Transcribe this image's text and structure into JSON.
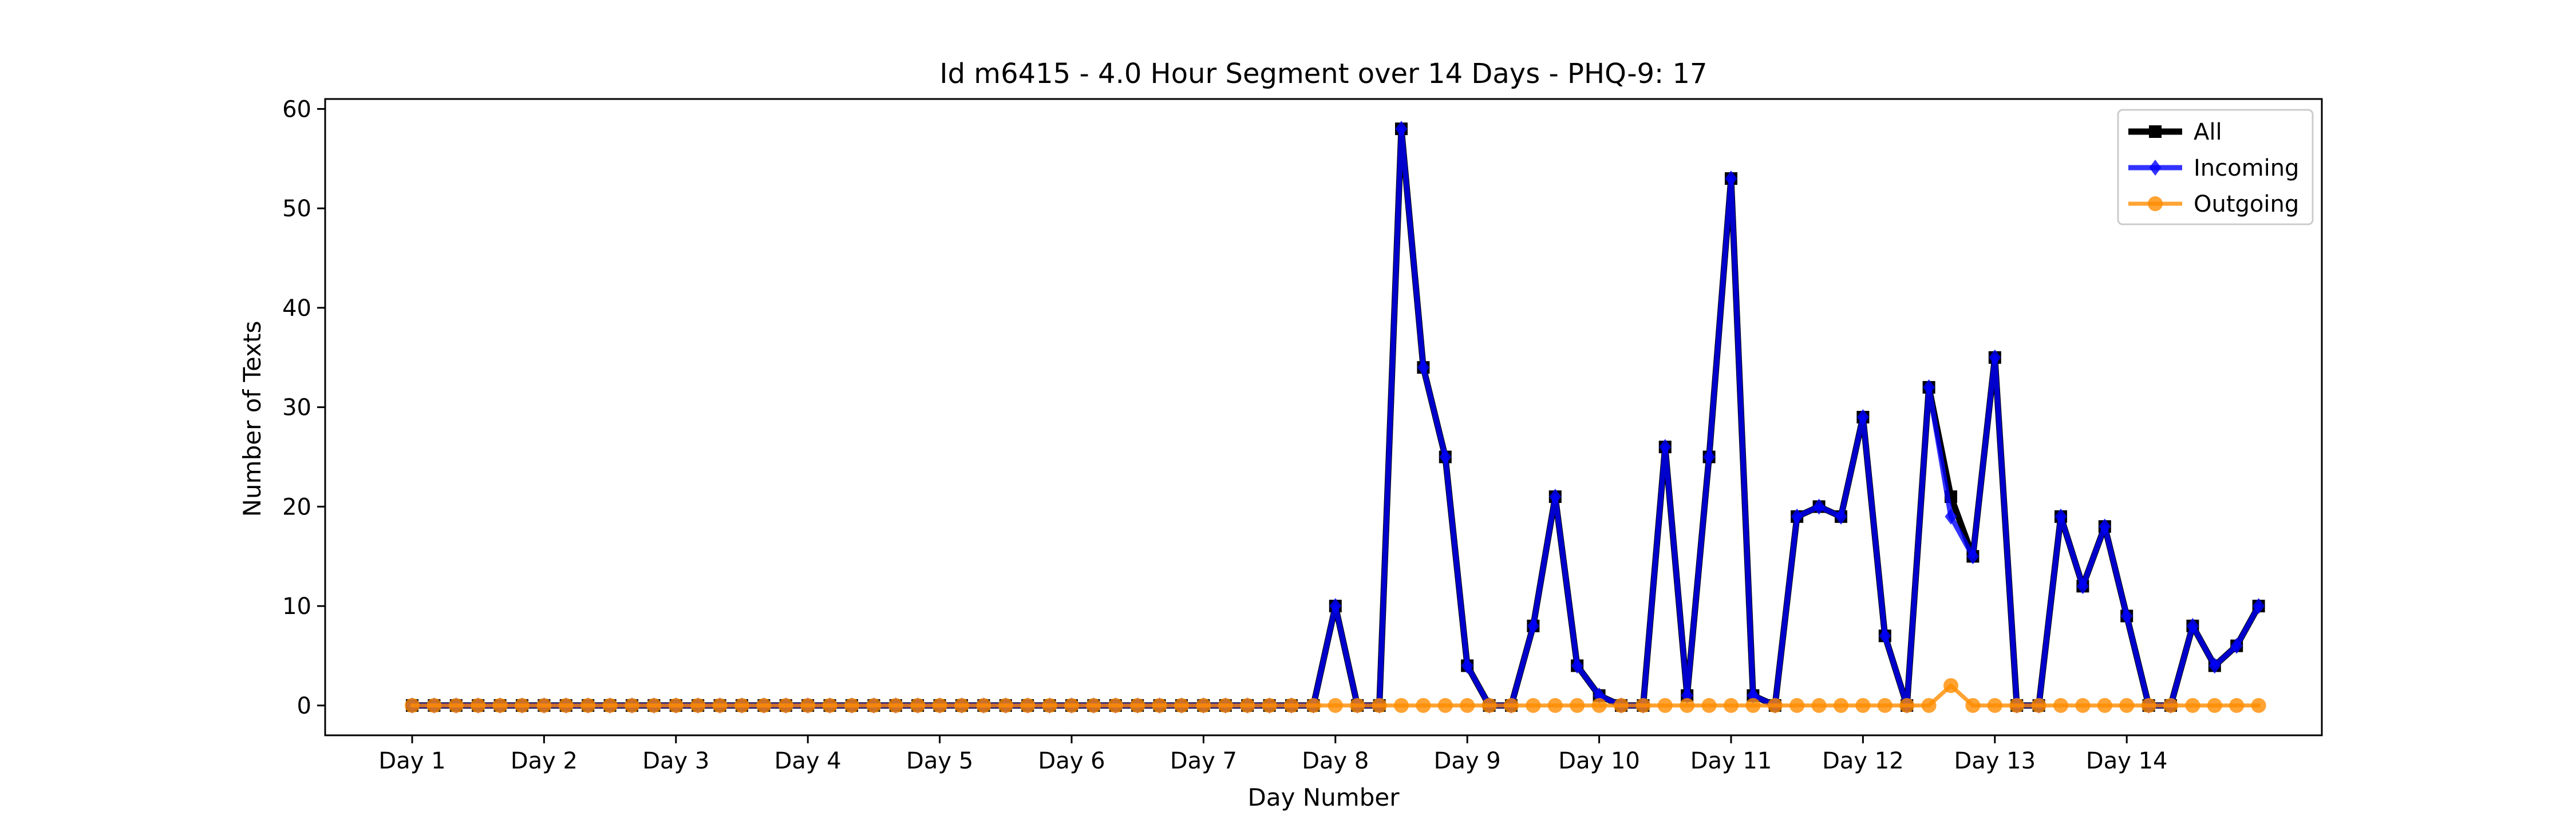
{
  "chart_data": {
    "type": "line",
    "title": "Id m6415 - 4.0 Hour Segment over 14 Days - PHQ-9: 17",
    "xlabel": "Day Number",
    "ylabel": "Number of Texts",
    "ylim": [
      -3,
      61
    ],
    "yticks": [
      0,
      10,
      20,
      30,
      40,
      50,
      60
    ],
    "xtick_labels": [
      "Day 1",
      "Day 2",
      "Day 3",
      "Day 4",
      "Day 5",
      "Day 6",
      "Day 7",
      "Day 8",
      "Day 9",
      "Day 10",
      "Day 11",
      "Day 12",
      "Day 13",
      "Day 14"
    ],
    "segments_per_day": 6,
    "grid": false,
    "legend_position": "top-right",
    "colors": {
      "all": "#000000",
      "incoming": "#0000ff",
      "outgoing": "#ff8c00"
    },
    "series": [
      {
        "name": "All",
        "marker": "square",
        "values": [
          0,
          0,
          0,
          0,
          0,
          0,
          0,
          0,
          0,
          0,
          0,
          0,
          0,
          0,
          0,
          0,
          0,
          0,
          0,
          0,
          0,
          0,
          0,
          0,
          0,
          0,
          0,
          0,
          0,
          0,
          0,
          0,
          0,
          0,
          0,
          0,
          0,
          0,
          0,
          0,
          0,
          0,
          10,
          0,
          0,
          58,
          34,
          25,
          4,
          0,
          0,
          8,
          21,
          4,
          1,
          0,
          0,
          26,
          1,
          25,
          53,
          1,
          0,
          19,
          20,
          19,
          29,
          7,
          0,
          32,
          21,
          15,
          35,
          0,
          0,
          19,
          12,
          18,
          9,
          0,
          0,
          8,
          4,
          6,
          10
        ]
      },
      {
        "name": "Incoming",
        "marker": "diamond",
        "values": [
          0,
          0,
          0,
          0,
          0,
          0,
          0,
          0,
          0,
          0,
          0,
          0,
          0,
          0,
          0,
          0,
          0,
          0,
          0,
          0,
          0,
          0,
          0,
          0,
          0,
          0,
          0,
          0,
          0,
          0,
          0,
          0,
          0,
          0,
          0,
          0,
          0,
          0,
          0,
          0,
          0,
          0,
          10,
          0,
          0,
          58,
          34,
          25,
          4,
          0,
          0,
          8,
          21,
          4,
          1,
          0,
          0,
          26,
          1,
          25,
          53,
          1,
          0,
          19,
          20,
          19,
          29,
          7,
          0,
          32,
          19,
          15,
          35,
          0,
          0,
          19,
          12,
          18,
          9,
          0,
          0,
          8,
          4,
          6,
          10
        ]
      },
      {
        "name": "Outgoing",
        "marker": "circle",
        "values": [
          0,
          0,
          0,
          0,
          0,
          0,
          0,
          0,
          0,
          0,
          0,
          0,
          0,
          0,
          0,
          0,
          0,
          0,
          0,
          0,
          0,
          0,
          0,
          0,
          0,
          0,
          0,
          0,
          0,
          0,
          0,
          0,
          0,
          0,
          0,
          0,
          0,
          0,
          0,
          0,
          0,
          0,
          0,
          0,
          0,
          0,
          0,
          0,
          0,
          0,
          0,
          0,
          0,
          0,
          0,
          0,
          0,
          0,
          0,
          0,
          0,
          0,
          0,
          0,
          0,
          0,
          0,
          0,
          0,
          0,
          2,
          0,
          0,
          0,
          0,
          0,
          0,
          0,
          0,
          0,
          0,
          0,
          0,
          0,
          0
        ]
      }
    ]
  }
}
